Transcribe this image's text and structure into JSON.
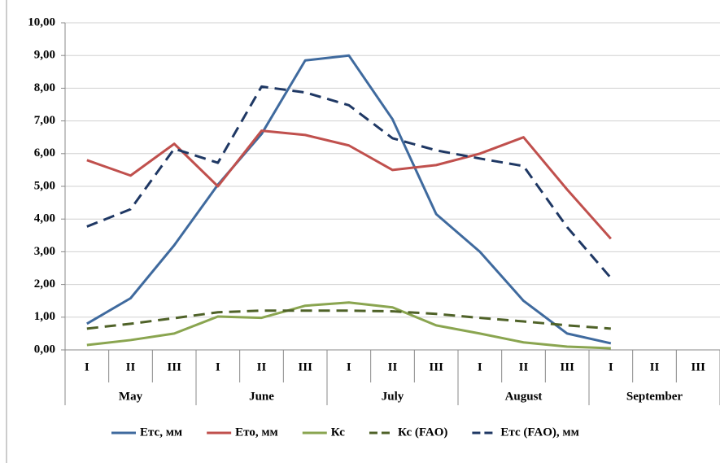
{
  "chart_data": {
    "type": "line",
    "categories": [
      "I",
      "II",
      "III",
      "I",
      "II",
      "III",
      "I",
      "II",
      "III",
      "I",
      "II",
      "III",
      "I",
      "II",
      "III"
    ],
    "group_labels": [
      "May",
      "June",
      "July",
      "August",
      "September"
    ],
    "ylim": [
      0,
      10
    ],
    "yticks": [
      {
        "value": 0,
        "label": "0,00"
      },
      {
        "value": 1,
        "label": "1,00"
      },
      {
        "value": 2,
        "label": "2,00"
      },
      {
        "value": 3,
        "label": "3,00"
      },
      {
        "value": 4,
        "label": "4,00"
      },
      {
        "value": 5,
        "label": "5,00"
      },
      {
        "value": 6,
        "label": "6,00"
      },
      {
        "value": 7,
        "label": "7,00"
      },
      {
        "value": 8,
        "label": "8,00"
      },
      {
        "value": 9,
        "label": "9,00"
      },
      {
        "value": 10,
        "label": "10,00"
      }
    ],
    "grid": true,
    "legend": "bottom",
    "series": [
      {
        "name": "Етс, мм",
        "color": "#3f6a9e",
        "dashed": false,
        "values": [
          0.8,
          1.58,
          3.2,
          5.05,
          6.6,
          8.85,
          9.0,
          7.05,
          4.15,
          3.0,
          1.5,
          0.5,
          0.2,
          null,
          null
        ]
      },
      {
        "name": "Ето, мм",
        "color": "#c0504d",
        "dashed": false,
        "values": [
          5.8,
          5.33,
          6.3,
          5.0,
          6.7,
          6.57,
          6.25,
          5.5,
          5.65,
          6.0,
          6.5,
          4.9,
          3.4,
          null,
          null
        ]
      },
      {
        "name": "Кс",
        "color": "#8aa550",
        "dashed": false,
        "values": [
          0.15,
          0.3,
          0.5,
          1.02,
          0.98,
          1.35,
          1.45,
          1.3,
          0.75,
          0.5,
          0.23,
          0.1,
          0.05,
          null,
          null
        ]
      },
      {
        "name": "Кс (FAO)",
        "color": "#4f6228",
        "dashed": true,
        "values": [
          0.65,
          0.8,
          0.97,
          1.15,
          1.2,
          1.2,
          1.2,
          1.18,
          1.1,
          0.98,
          0.87,
          0.75,
          0.65,
          null,
          null
        ]
      },
      {
        "name": "Етс (FAO), мм",
        "color": "#1f3864",
        "dashed": true,
        "values": [
          3.77,
          4.3,
          6.15,
          5.72,
          8.05,
          7.87,
          7.48,
          6.47,
          6.1,
          5.85,
          5.62,
          3.75,
          2.2,
          null,
          null
        ]
      }
    ]
  }
}
